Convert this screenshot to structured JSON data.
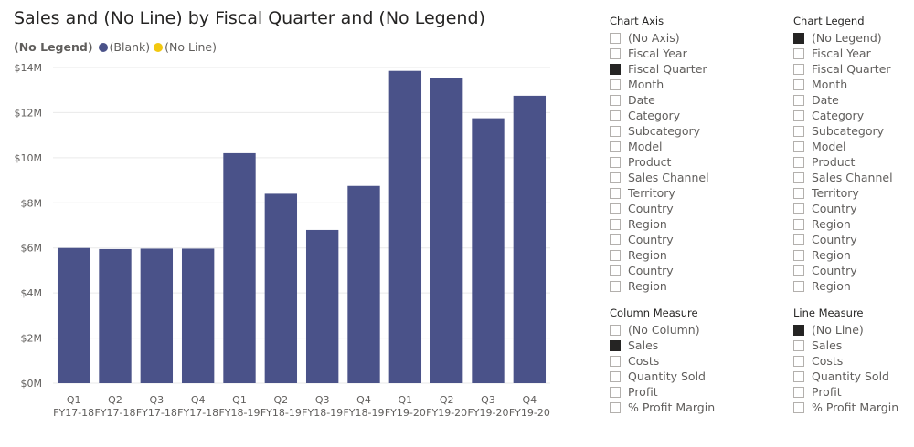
{
  "title": "Sales and (No Line) by Fiscal Quarter and (No Legend)",
  "legend": {
    "title": "(No Legend)",
    "items": [
      {
        "label": "(Blank)",
        "color": "#4a5289"
      },
      {
        "label": "(No Line)",
        "color": "#f2c80f"
      }
    ]
  },
  "chart_data": {
    "type": "bar",
    "title": "Sales and (No Line) by Fiscal Quarter and (No Legend)",
    "categories": [
      "Q1",
      "Q2",
      "Q3",
      "Q4",
      "Q1",
      "Q2",
      "Q3",
      "Q4",
      "Q1",
      "Q2",
      "Q3",
      "Q4"
    ],
    "category_groups": [
      "FY17-18",
      "FY17-18",
      "FY17-18",
      "FY17-18",
      "FY18-19",
      "FY18-19",
      "FY18-19",
      "FY18-19",
      "FY19-20",
      "FY19-20",
      "FY19-20",
      "FY19-20"
    ],
    "series": [
      {
        "name": "(Blank)",
        "color": "#4a5289",
        "values": [
          6.0,
          5.95,
          5.97,
          5.97,
          10.2,
          8.4,
          6.8,
          8.75,
          13.85,
          13.55,
          11.75,
          12.75
        ]
      }
    ],
    "unit": "M",
    "yticks": [
      0,
      2,
      4,
      6,
      8,
      10,
      12,
      14
    ],
    "ytick_labels": [
      "$0M",
      "$2M",
      "$4M",
      "$6M",
      "$8M",
      "$10M",
      "$12M",
      "$14M"
    ],
    "ylim": [
      0,
      14
    ],
    "grid": true,
    "xlabel": "",
    "ylabel": ""
  },
  "slicers": [
    {
      "title": "Chart Axis",
      "items": [
        {
          "label": "(No Axis)",
          "checked": false
        },
        {
          "label": "Fiscal Year",
          "checked": false
        },
        {
          "label": "Fiscal Quarter",
          "checked": true
        },
        {
          "label": "Month",
          "checked": false
        },
        {
          "label": "Date",
          "checked": false
        },
        {
          "label": "Category",
          "checked": false
        },
        {
          "label": "Subcategory",
          "checked": false
        },
        {
          "label": "Model",
          "checked": false
        },
        {
          "label": "Product",
          "checked": false
        },
        {
          "label": "Sales Channel",
          "checked": false
        },
        {
          "label": "Territory",
          "checked": false
        },
        {
          "label": "Country",
          "checked": false
        },
        {
          "label": "Region",
          "checked": false
        },
        {
          "label": "Country",
          "checked": false
        },
        {
          "label": "Region",
          "checked": false
        },
        {
          "label": "Country",
          "checked": false
        },
        {
          "label": "Region",
          "checked": false
        }
      ]
    },
    {
      "title": "Chart Legend",
      "items": [
        {
          "label": "(No Legend)",
          "checked": true
        },
        {
          "label": "Fiscal Year",
          "checked": false
        },
        {
          "label": "Fiscal Quarter",
          "checked": false
        },
        {
          "label": "Month",
          "checked": false
        },
        {
          "label": "Date",
          "checked": false
        },
        {
          "label": "Category",
          "checked": false
        },
        {
          "label": "Subcategory",
          "checked": false
        },
        {
          "label": "Model",
          "checked": false
        },
        {
          "label": "Product",
          "checked": false
        },
        {
          "label": "Sales Channel",
          "checked": false
        },
        {
          "label": "Territory",
          "checked": false
        },
        {
          "label": "Country",
          "checked": false
        },
        {
          "label": "Region",
          "checked": false
        },
        {
          "label": "Country",
          "checked": false
        },
        {
          "label": "Region",
          "checked": false
        },
        {
          "label": "Country",
          "checked": false
        },
        {
          "label": "Region",
          "checked": false
        }
      ]
    },
    {
      "title": "Column Measure",
      "items": [
        {
          "label": "(No Column)",
          "checked": false
        },
        {
          "label": "Sales",
          "checked": true
        },
        {
          "label": "Costs",
          "checked": false
        },
        {
          "label": "Quantity Sold",
          "checked": false
        },
        {
          "label": "Profit",
          "checked": false
        },
        {
          "label": "% Profit Margin",
          "checked": false
        }
      ]
    },
    {
      "title": "Line Measure",
      "items": [
        {
          "label": "(No Line)",
          "checked": true
        },
        {
          "label": "Sales",
          "checked": false
        },
        {
          "label": "Costs",
          "checked": false
        },
        {
          "label": "Quantity Sold",
          "checked": false
        },
        {
          "label": "Profit",
          "checked": false
        },
        {
          "label": "% Profit Margin",
          "checked": false
        }
      ]
    }
  ]
}
